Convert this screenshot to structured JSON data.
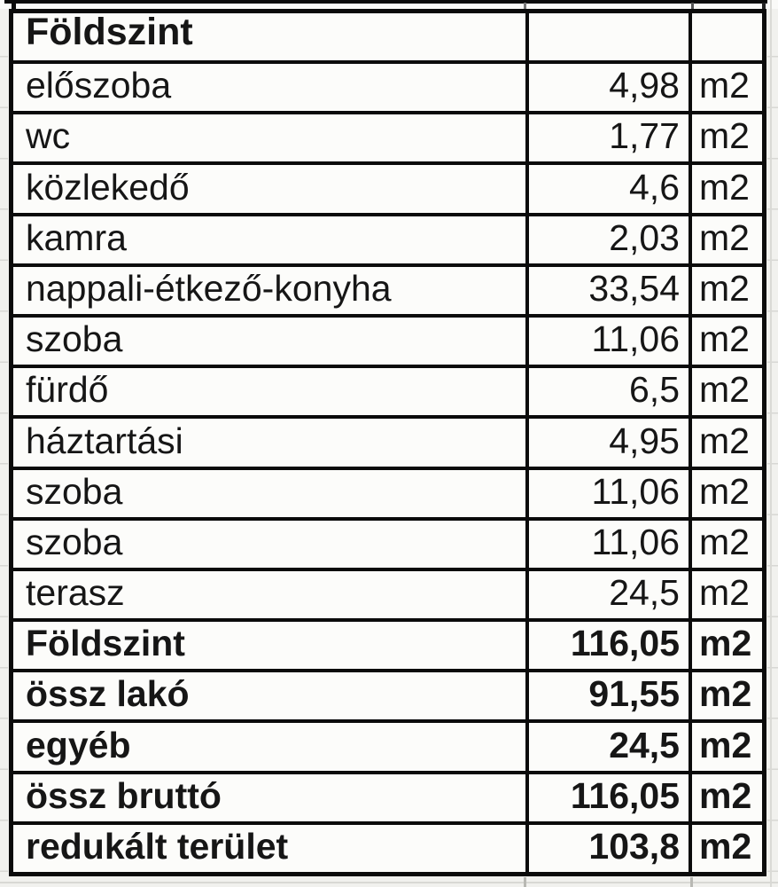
{
  "sheet": {
    "title": "Földszint",
    "rows": [
      {
        "label": "Földszint",
        "value": "",
        "unit": "",
        "style": "header"
      },
      {
        "label": "előszoba",
        "value": "4,98",
        "unit": "m2",
        "style": "item"
      },
      {
        "label": "wc",
        "value": "1,77",
        "unit": "m2",
        "style": "item"
      },
      {
        "label": "közlekedő",
        "value": "4,6",
        "unit": "m2",
        "style": "item"
      },
      {
        "label": "kamra",
        "value": "2,03",
        "unit": "m2",
        "style": "item"
      },
      {
        "label": "nappali-étkező-konyha",
        "value": "33,54",
        "unit": "m2",
        "style": "item"
      },
      {
        "label": "szoba",
        "value": "11,06",
        "unit": "m2",
        "style": "item"
      },
      {
        "label": "fürdő",
        "value": "6,5",
        "unit": "m2",
        "style": "item"
      },
      {
        "label": "háztartási",
        "value": "4,95",
        "unit": "m2",
        "style": "item"
      },
      {
        "label": "szoba",
        "value": "11,06",
        "unit": "m2",
        "style": "item"
      },
      {
        "label": "szoba",
        "value": "11,06",
        "unit": "m2",
        "style": "item"
      },
      {
        "label": "terasz",
        "value": "24,5",
        "unit": "m2",
        "style": "item"
      },
      {
        "label": "Földszint",
        "value": "116,05",
        "unit": "m2",
        "style": "total"
      },
      {
        "label": "össz lakó",
        "value": "91,55",
        "unit": "m2",
        "style": "total"
      },
      {
        "label": "egyéb",
        "value": "24,5",
        "unit": "m2",
        "style": "total"
      },
      {
        "label": "össz bruttó",
        "value": "116,05",
        "unit": "m2",
        "style": "total"
      },
      {
        "label": "redukált terület",
        "value": "103,8",
        "unit": "m2",
        "style": "total"
      }
    ]
  },
  "colors": {
    "border": "#0b0b0b",
    "text": "#161616",
    "cell_bg": "#fcfcfa",
    "page_bg": "#f1f1ee",
    "gridline": "#d8d8d4"
  }
}
